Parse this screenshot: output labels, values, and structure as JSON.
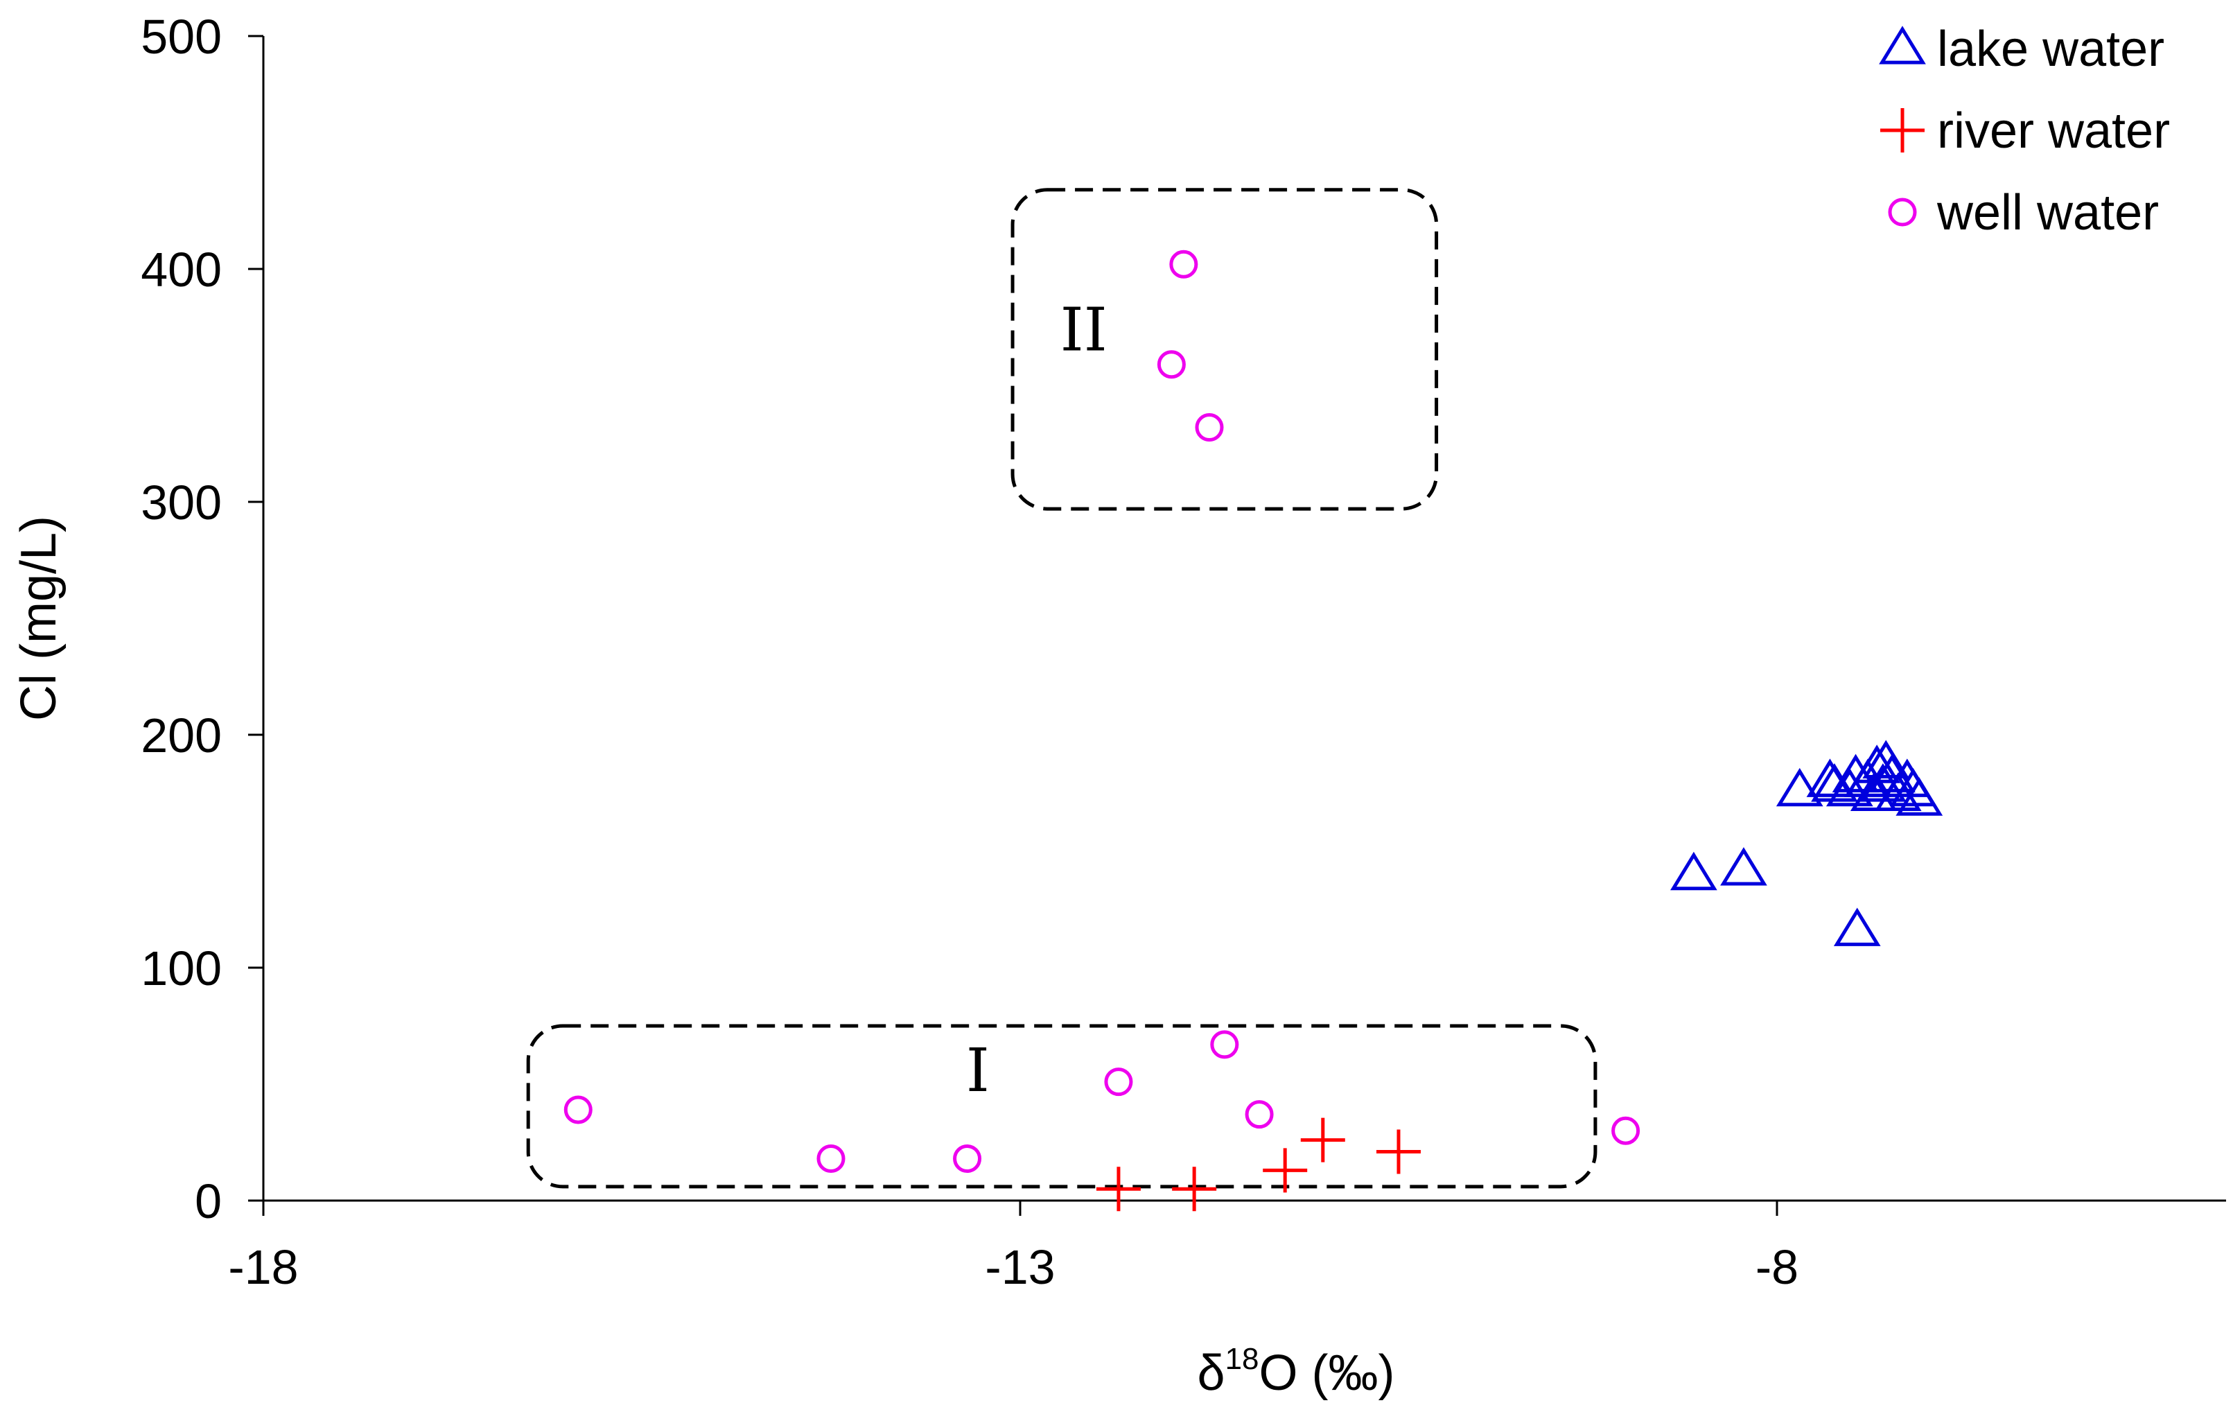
{
  "chart_data": {
    "type": "scatter",
    "xlabel": {
      "prefix": "δ",
      "sup": "18",
      "suffix": "O (‰)"
    },
    "ylabel": "Cl (mg/L)",
    "xlim": [
      -18,
      -5
    ],
    "ylim": [
      0,
      500
    ],
    "xticks": [
      -18,
      -13,
      -8
    ],
    "yticks": [
      0,
      100,
      200,
      300,
      400,
      500
    ],
    "grid": false,
    "legend_position": "top-right",
    "series": [
      {
        "name": "lake water",
        "marker": "triangle",
        "color": "#0000dd",
        "points": [
          [
            -8.55,
            140
          ],
          [
            -8.22,
            142
          ],
          [
            -7.47,
            116
          ],
          [
            -7.85,
            176
          ],
          [
            -7.65,
            180
          ],
          [
            -7.62,
            178
          ],
          [
            -7.52,
            176
          ],
          [
            -7.48,
            182
          ],
          [
            -7.4,
            180
          ],
          [
            -7.34,
            186
          ],
          [
            -7.28,
            188
          ],
          [
            -7.24,
            182
          ],
          [
            -7.14,
            180
          ],
          [
            -7.1,
            176
          ],
          [
            -7.06,
            172
          ],
          [
            -7.3,
            178
          ],
          [
            -7.2,
            174
          ],
          [
            -7.36,
            174
          ]
        ]
      },
      {
        "name": "river water",
        "marker": "plus",
        "color": "#ff0000",
        "points": [
          [
            -12.35,
            5
          ],
          [
            -11.85,
            5
          ],
          [
            -11.25,
            13
          ],
          [
            -11.0,
            26
          ],
          [
            -10.5,
            21
          ]
        ]
      },
      {
        "name": "well water",
        "marker": "circle",
        "color": "#ee00ee",
        "points": [
          [
            -15.92,
            39
          ],
          [
            -14.25,
            18
          ],
          [
            -13.35,
            18
          ],
          [
            -12.35,
            51
          ],
          [
            -11.65,
            67
          ],
          [
            -11.42,
            37
          ],
          [
            -9.0,
            30
          ],
          [
            -11.92,
            402
          ],
          [
            -12.0,
            359
          ],
          [
            -11.75,
            332
          ]
        ]
      }
    ],
    "annotations": [
      {
        "label": "I",
        "box": {
          "x0": -16.25,
          "x1": -9.2,
          "y0": 6,
          "y1": 75
        },
        "label_at": [
          -13.28,
          47
        ]
      },
      {
        "label": "II",
        "box": {
          "x0": -13.05,
          "x1": -10.25,
          "y0": 297,
          "y1": 434
        },
        "label_at": [
          -12.58,
          365
        ]
      }
    ]
  }
}
